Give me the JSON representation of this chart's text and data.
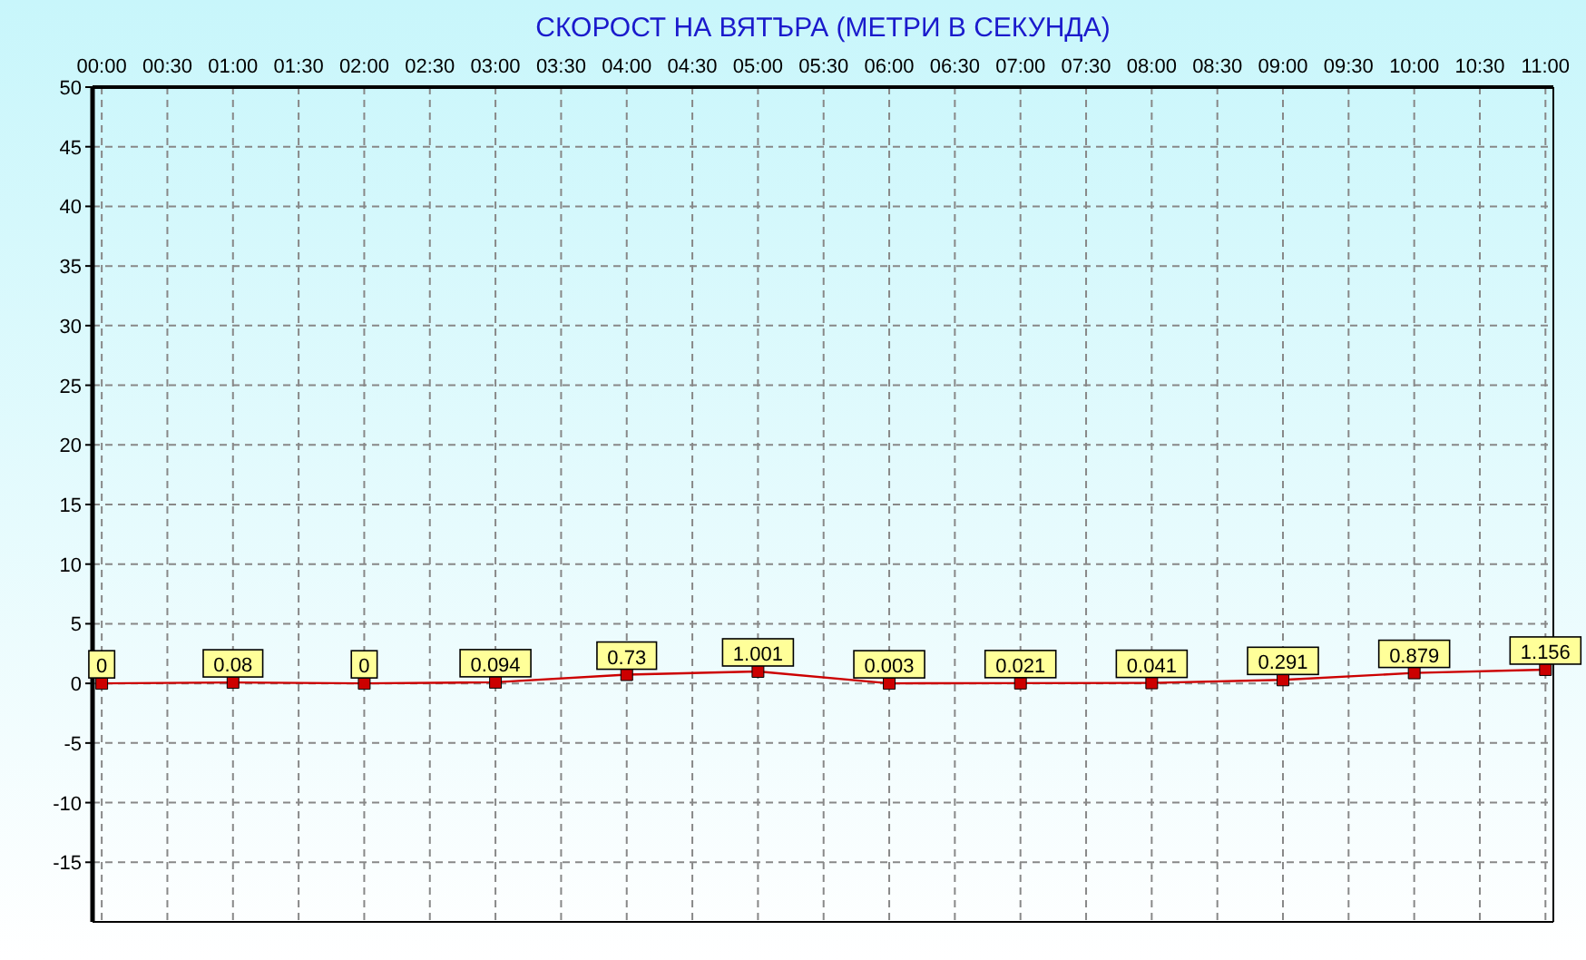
{
  "chart_data": {
    "type": "line",
    "title": "СКОРОСТ НА ВЯТЪРА (МЕТРИ В СЕКУНДА)",
    "x": [
      0,
      1,
      2,
      3,
      4,
      5,
      6,
      7,
      8,
      9,
      10,
      11
    ],
    "series": [
      {
        "color": "#cc0000",
        "values": [
          0,
          0.08,
          0,
          0.094,
          0.73,
          1.001,
          0.003,
          0.021,
          0.041,
          0.291,
          0.879,
          1.156
        ]
      }
    ],
    "xlim": [
      -0.07,
      11.06
    ],
    "xticks": [
      {
        "value": 0,
        "label": "00:00"
      },
      {
        "value": 0.5,
        "label": "00:30"
      },
      {
        "value": 1,
        "label": "01:00"
      },
      {
        "value": 1.5,
        "label": "01:30"
      },
      {
        "value": 2,
        "label": "02:00"
      },
      {
        "value": 2.5,
        "label": "02:30"
      },
      {
        "value": 3,
        "label": "03:00"
      },
      {
        "value": 3.5,
        "label": "03:30"
      },
      {
        "value": 4,
        "label": "04:00"
      },
      {
        "value": 4.5,
        "label": "04:30"
      },
      {
        "value": 5,
        "label": "05:00"
      },
      {
        "value": 5.5,
        "label": "05:30"
      },
      {
        "value": 6,
        "label": "06:00"
      },
      {
        "value": 6.5,
        "label": "06:30"
      },
      {
        "value": 7,
        "label": "07:00"
      },
      {
        "value": 7.5,
        "label": "07:30"
      },
      {
        "value": 8,
        "label": "08:00"
      },
      {
        "value": 8.5,
        "label": "08:30"
      },
      {
        "value": 9,
        "label": "09:00"
      },
      {
        "value": 9.5,
        "label": "09:30"
      },
      {
        "value": 10,
        "label": "10:00"
      },
      {
        "value": 10.5,
        "label": "10:30"
      },
      {
        "value": 11,
        "label": "11:00"
      }
    ],
    "ylim": [
      -20,
      50
    ],
    "yticks": [
      -15,
      -10,
      -5,
      0,
      5,
      10,
      15,
      20,
      25,
      30,
      35,
      40,
      45,
      50
    ],
    "grid": true,
    "marker": "square",
    "line_style": "solid",
    "data_labels": true
  }
}
